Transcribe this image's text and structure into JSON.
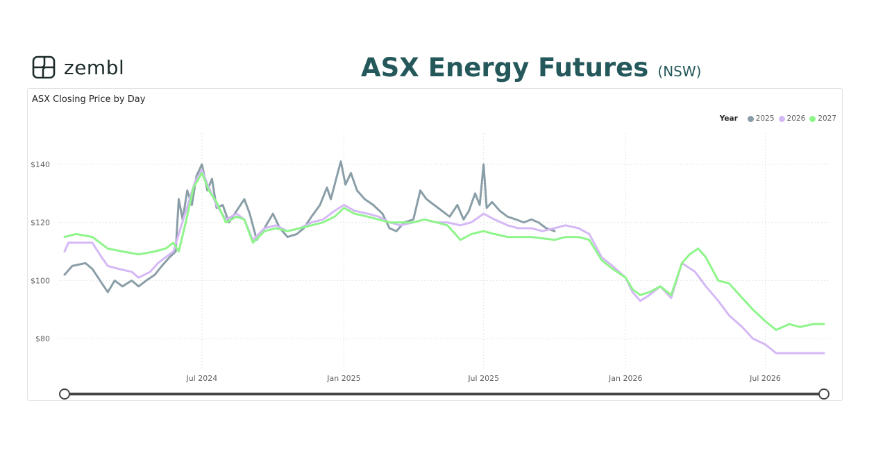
{
  "brand": {
    "name": "zembl"
  },
  "header": {
    "title": "ASX Energy Futures",
    "region": "(NSW)"
  },
  "chart_data": {
    "type": "line",
    "title": "ASX Closing Price by Day",
    "xlabel": "",
    "ylabel": "",
    "legend_title": "Year",
    "legend_position": "top-right",
    "grid": true,
    "x_range": [
      "2024-01-05",
      "2026-09-15"
    ],
    "ylim": [
      70,
      150
    ],
    "y_ticks": [
      {
        "value": 140,
        "label": "$140"
      },
      {
        "value": 120,
        "label": "$120"
      },
      {
        "value": 100,
        "label": "$100"
      },
      {
        "value": 80,
        "label": "$80"
      }
    ],
    "x_ticks": [
      {
        "date": "2024-07-01",
        "label": "Jul 2024"
      },
      {
        "date": "2025-01-01",
        "label": "Jan 2025"
      },
      {
        "date": "2025-07-01",
        "label": "Jul 2025"
      },
      {
        "date": "2026-01-01",
        "label": "Jan 2026"
      },
      {
        "date": "2026-07-01",
        "label": "Jul 2026"
      }
    ],
    "series": [
      {
        "name": "2025",
        "color": "#8a9ea8",
        "points": [
          [
            "2024-01-05",
            102
          ],
          [
            "2024-01-15",
            105
          ],
          [
            "2024-02-01",
            106
          ],
          [
            "2024-02-10",
            104
          ],
          [
            "2024-02-20",
            100
          ],
          [
            "2024-03-01",
            96
          ],
          [
            "2024-03-10",
            100
          ],
          [
            "2024-03-20",
            98
          ],
          [
            "2024-04-01",
            100
          ],
          [
            "2024-04-10",
            98
          ],
          [
            "2024-04-20",
            100
          ],
          [
            "2024-05-01",
            102
          ],
          [
            "2024-05-10",
            105
          ],
          [
            "2024-05-20",
            108
          ],
          [
            "2024-05-28",
            110
          ],
          [
            "2024-06-01",
            128
          ],
          [
            "2024-06-06",
            121
          ],
          [
            "2024-06-12",
            131
          ],
          [
            "2024-06-18",
            126
          ],
          [
            "2024-06-24",
            136
          ],
          [
            "2024-07-01",
            140
          ],
          [
            "2024-07-08",
            131
          ],
          [
            "2024-07-14",
            135
          ],
          [
            "2024-07-20",
            125
          ],
          [
            "2024-07-28",
            126
          ],
          [
            "2024-08-05",
            120
          ],
          [
            "2024-08-15",
            124
          ],
          [
            "2024-08-25",
            128
          ],
          [
            "2024-09-01",
            123
          ],
          [
            "2024-09-10",
            114
          ],
          [
            "2024-09-20",
            118
          ],
          [
            "2024-10-01",
            123
          ],
          [
            "2024-10-10",
            118
          ],
          [
            "2024-10-20",
            115
          ],
          [
            "2024-11-01",
            116
          ],
          [
            "2024-11-10",
            118
          ],
          [
            "2024-11-20",
            122
          ],
          [
            "2024-12-01",
            126
          ],
          [
            "2024-12-10",
            132
          ],
          [
            "2024-12-15",
            128
          ],
          [
            "2024-12-22",
            135
          ],
          [
            "2024-12-28",
            141
          ],
          [
            "2025-01-03",
            133
          ],
          [
            "2025-01-10",
            137
          ],
          [
            "2025-01-18",
            131
          ],
          [
            "2025-01-28",
            128
          ],
          [
            "2025-02-08",
            126
          ],
          [
            "2025-02-20",
            123
          ],
          [
            "2025-03-01",
            118
          ],
          [
            "2025-03-10",
            117
          ],
          [
            "2025-03-20",
            120
          ],
          [
            "2025-04-01",
            121
          ],
          [
            "2025-04-10",
            131
          ],
          [
            "2025-04-18",
            128
          ],
          [
            "2025-04-28",
            126
          ],
          [
            "2025-05-08",
            124
          ],
          [
            "2025-05-18",
            122
          ],
          [
            "2025-05-28",
            126
          ],
          [
            "2025-06-05",
            121
          ],
          [
            "2025-06-12",
            124
          ],
          [
            "2025-06-20",
            130
          ],
          [
            "2025-06-26",
            126
          ],
          [
            "2025-07-01",
            140
          ],
          [
            "2025-07-05",
            125
          ],
          [
            "2025-07-12",
            127
          ],
          [
            "2025-07-22",
            124
          ],
          [
            "2025-08-01",
            122
          ],
          [
            "2025-08-12",
            121
          ],
          [
            "2025-08-22",
            120
          ],
          [
            "2025-09-01",
            121
          ],
          [
            "2025-09-10",
            120
          ],
          [
            "2025-09-20",
            118
          ],
          [
            "2025-10-01",
            117
          ]
        ]
      },
      {
        "name": "2026",
        "color": "#d5b8f5",
        "points": [
          [
            "2024-01-05",
            110
          ],
          [
            "2024-01-10",
            113
          ],
          [
            "2024-01-25",
            113
          ],
          [
            "2024-02-10",
            113
          ],
          [
            "2024-02-22",
            108
          ],
          [
            "2024-03-01",
            105
          ],
          [
            "2024-03-15",
            104
          ],
          [
            "2024-04-01",
            103
          ],
          [
            "2024-04-10",
            101
          ],
          [
            "2024-04-25",
            103
          ],
          [
            "2024-05-05",
            106
          ],
          [
            "2024-05-15",
            108
          ],
          [
            "2024-05-25",
            110
          ],
          [
            "2024-06-01",
            116
          ],
          [
            "2024-06-08",
            122
          ],
          [
            "2024-06-15",
            128
          ],
          [
            "2024-06-22",
            134
          ],
          [
            "2024-07-01",
            138
          ],
          [
            "2024-07-10",
            132
          ],
          [
            "2024-07-20",
            126
          ],
          [
            "2024-08-01",
            121
          ],
          [
            "2024-08-15",
            123
          ],
          [
            "2024-08-25",
            121
          ],
          [
            "2024-09-05",
            114
          ],
          [
            "2024-09-20",
            118
          ],
          [
            "2024-10-05",
            119
          ],
          [
            "2024-10-20",
            117
          ],
          [
            "2024-11-05",
            118
          ],
          [
            "2024-11-20",
            120
          ],
          [
            "2024-12-05",
            121
          ],
          [
            "2024-12-20",
            124
          ],
          [
            "2025-01-01",
            126
          ],
          [
            "2025-01-15",
            124
          ],
          [
            "2025-02-01",
            123
          ],
          [
            "2025-02-15",
            122
          ],
          [
            "2025-03-01",
            120
          ],
          [
            "2025-03-15",
            119
          ],
          [
            "2025-04-01",
            120
          ],
          [
            "2025-04-15",
            121
          ],
          [
            "2025-05-01",
            120
          ],
          [
            "2025-05-15",
            120
          ],
          [
            "2025-06-01",
            119
          ],
          [
            "2025-06-15",
            120
          ],
          [
            "2025-07-01",
            123
          ],
          [
            "2025-07-15",
            121
          ],
          [
            "2025-08-01",
            119
          ],
          [
            "2025-08-15",
            118
          ],
          [
            "2025-09-01",
            118
          ],
          [
            "2025-09-15",
            117
          ],
          [
            "2025-10-01",
            118
          ],
          [
            "2025-10-15",
            119
          ],
          [
            "2025-11-01",
            118
          ],
          [
            "2025-11-15",
            116
          ],
          [
            "2025-12-01",
            108
          ],
          [
            "2025-12-15",
            105
          ],
          [
            "2026-01-01",
            101
          ],
          [
            "2026-01-10",
            96
          ],
          [
            "2026-01-20",
            93
          ],
          [
            "2026-02-01",
            95
          ],
          [
            "2026-02-15",
            98
          ],
          [
            "2026-03-01",
            94
          ],
          [
            "2026-03-15",
            106
          ],
          [
            "2026-04-01",
            103
          ],
          [
            "2026-04-15",
            98
          ],
          [
            "2026-05-01",
            93
          ],
          [
            "2026-05-15",
            88
          ],
          [
            "2026-06-01",
            84
          ],
          [
            "2026-06-15",
            80
          ],
          [
            "2026-07-01",
            78
          ],
          [
            "2026-07-15",
            75
          ],
          [
            "2026-08-01",
            75
          ],
          [
            "2026-08-15",
            75
          ],
          [
            "2026-09-01",
            75
          ],
          [
            "2026-09-15",
            75
          ]
        ]
      },
      {
        "name": "2027",
        "color": "#8ef58a",
        "points": [
          [
            "2024-01-05",
            115
          ],
          [
            "2024-01-20",
            116
          ],
          [
            "2024-02-10",
            115
          ],
          [
            "2024-03-01",
            111
          ],
          [
            "2024-03-20",
            110
          ],
          [
            "2024-04-10",
            109
          ],
          [
            "2024-05-01",
            110
          ],
          [
            "2024-05-15",
            111
          ],
          [
            "2024-05-25",
            113
          ],
          [
            "2024-06-01",
            110
          ],
          [
            "2024-06-10",
            120
          ],
          [
            "2024-06-20",
            132
          ],
          [
            "2024-07-01",
            137
          ],
          [
            "2024-07-10",
            131
          ],
          [
            "2024-07-20",
            127
          ],
          [
            "2024-08-01",
            120
          ],
          [
            "2024-08-15",
            122
          ],
          [
            "2024-08-25",
            121
          ],
          [
            "2024-09-05",
            113
          ],
          [
            "2024-09-20",
            117
          ],
          [
            "2024-10-05",
            118
          ],
          [
            "2024-10-20",
            117
          ],
          [
            "2024-11-05",
            118
          ],
          [
            "2024-11-20",
            119
          ],
          [
            "2024-12-05",
            120
          ],
          [
            "2024-12-20",
            122
          ],
          [
            "2025-01-01",
            125
          ],
          [
            "2025-01-15",
            123
          ],
          [
            "2025-02-01",
            122
          ],
          [
            "2025-02-15",
            121
          ],
          [
            "2025-03-01",
            120
          ],
          [
            "2025-03-15",
            120
          ],
          [
            "2025-04-01",
            120
          ],
          [
            "2025-04-15",
            121
          ],
          [
            "2025-05-01",
            120
          ],
          [
            "2025-05-15",
            119
          ],
          [
            "2025-06-01",
            114
          ],
          [
            "2025-06-15",
            116
          ],
          [
            "2025-07-01",
            117
          ],
          [
            "2025-07-15",
            116
          ],
          [
            "2025-08-01",
            115
          ],
          [
            "2025-09-01",
            115
          ],
          [
            "2025-10-01",
            114
          ],
          [
            "2025-10-15",
            115
          ],
          [
            "2025-11-01",
            115
          ],
          [
            "2025-11-15",
            114
          ],
          [
            "2025-12-01",
            107
          ],
          [
            "2025-12-15",
            104
          ],
          [
            "2026-01-01",
            101
          ],
          [
            "2026-01-10",
            97
          ],
          [
            "2026-01-20",
            95
          ],
          [
            "2026-02-01",
            96
          ],
          [
            "2026-02-15",
            98
          ],
          [
            "2026-03-01",
            95
          ],
          [
            "2026-03-15",
            106
          ],
          [
            "2026-03-25",
            109
          ],
          [
            "2026-04-05",
            111
          ],
          [
            "2026-04-15",
            108
          ],
          [
            "2026-05-01",
            100
          ],
          [
            "2026-05-15",
            99
          ],
          [
            "2026-06-01",
            94
          ],
          [
            "2026-06-15",
            90
          ],
          [
            "2026-07-01",
            86
          ],
          [
            "2026-07-15",
            83
          ],
          [
            "2026-08-01",
            85
          ],
          [
            "2026-08-15",
            84
          ],
          [
            "2026-09-01",
            85
          ],
          [
            "2026-09-15",
            85
          ]
        ]
      }
    ]
  }
}
